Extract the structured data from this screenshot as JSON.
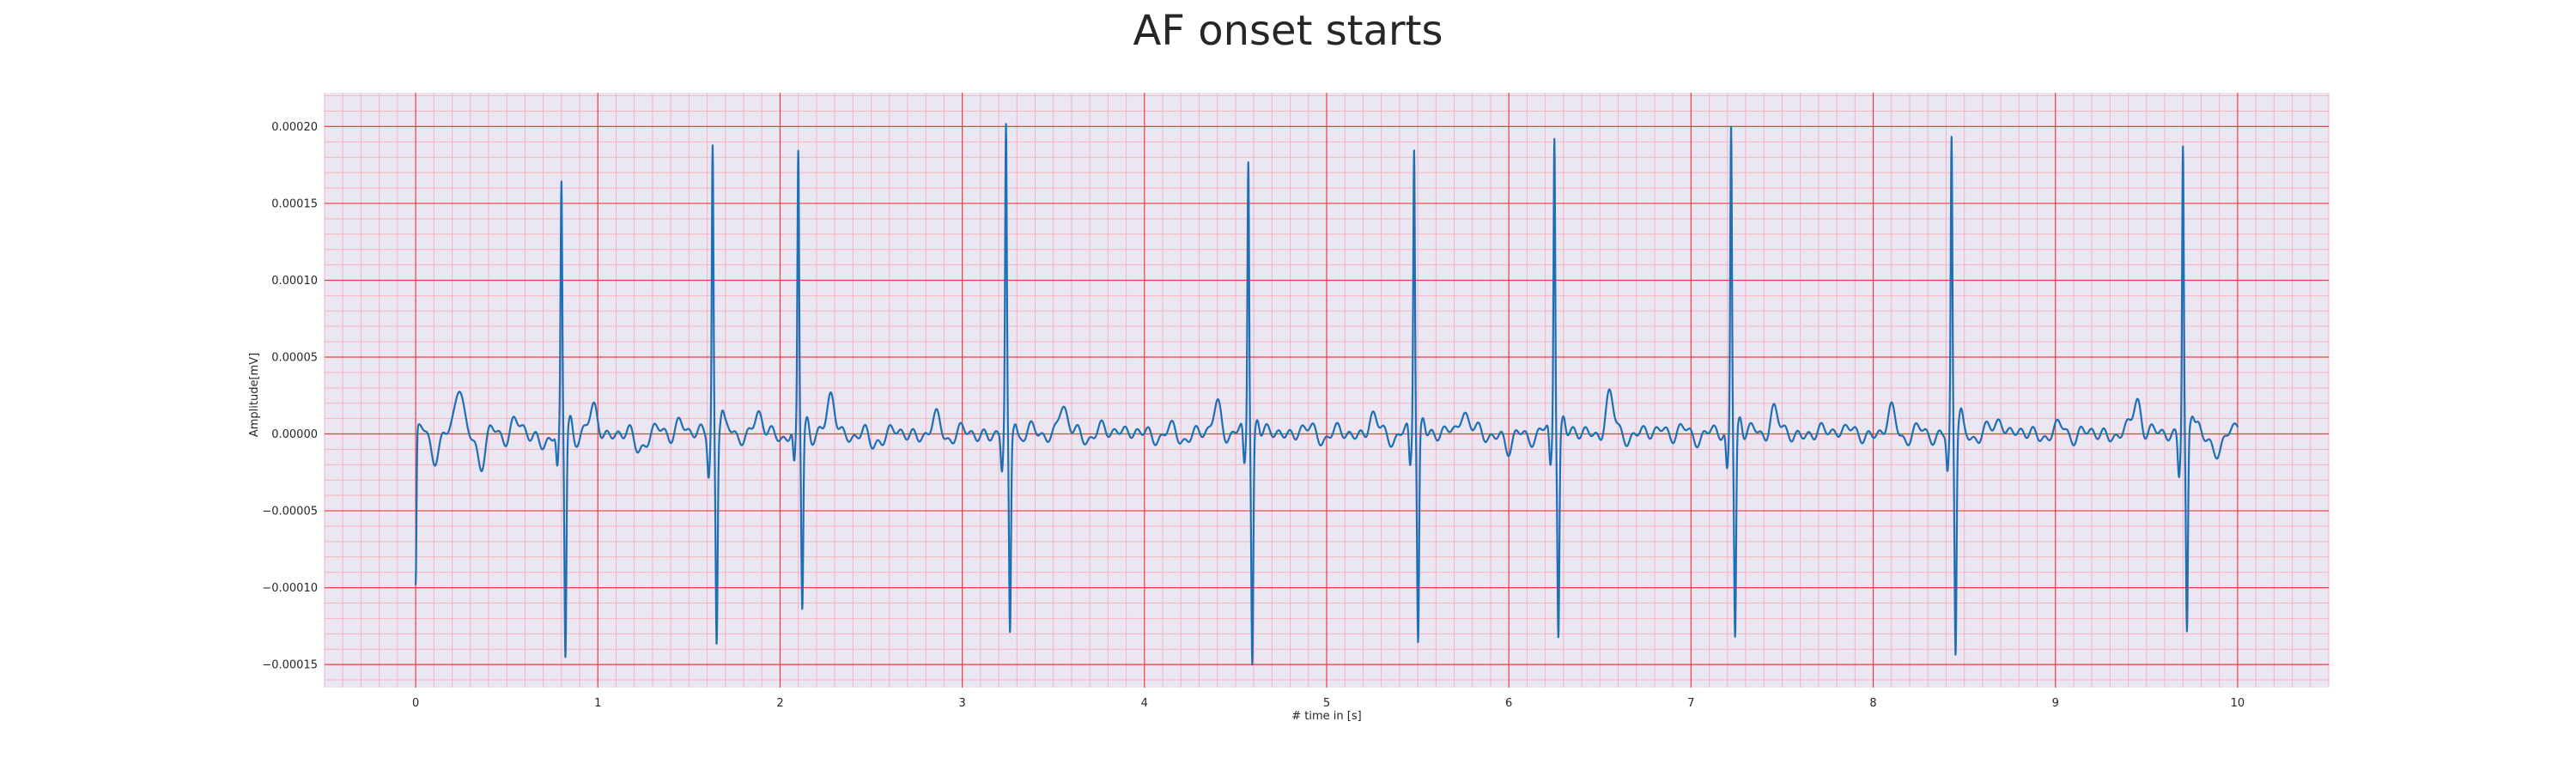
{
  "chart_data": {
    "type": "line",
    "title": "AF onset starts",
    "xlabel": "# time in [s]",
    "ylabel": "Amplitude[mV]",
    "xlim": [
      -0.5,
      10.5
    ],
    "ylim": [
      -0.000165,
      0.000222
    ],
    "x_ticks": [
      0,
      1,
      2,
      3,
      4,
      5,
      6,
      7,
      8,
      9,
      10
    ],
    "x_tick_labels": [
      "0",
      "1",
      "2",
      "3",
      "4",
      "5",
      "6",
      "7",
      "8",
      "9",
      "10"
    ],
    "y_ticks": [
      -0.00015,
      -0.0001,
      -5e-05,
      0.0,
      5e-05,
      0.0001,
      0.00015,
      0.0002
    ],
    "y_tick_labels": [
      "−0.00015",
      "−0.00010",
      "−0.00005",
      "0.00000",
      "0.00005",
      "0.00010",
      "0.00015",
      "0.00020"
    ],
    "grid": {
      "major": true,
      "minor": true,
      "major_color": "#f03c3c",
      "minor_color": "#f7b2c0",
      "background": "#eae6f2"
    },
    "series": [
      {
        "color": "#1f6fb4",
        "beats": [
          {
            "t": 0.8,
            "r": 0.000158,
            "s": -0.000146
          },
          {
            "t": 1.63,
            "r": 0.00019,
            "s": -0.000131
          },
          {
            "t": 2.1,
            "r": 0.000179,
            "s": -0.000114
          },
          {
            "t": 3.24,
            "r": 0.000195,
            "s": -0.000132
          },
          {
            "t": 4.57,
            "r": 0.000181,
            "s": -0.000146
          },
          {
            "t": 5.48,
            "r": 0.000188,
            "s": -0.000135
          },
          {
            "t": 6.25,
            "r": 0.000197,
            "s": -0.000128
          },
          {
            "t": 7.22,
            "r": 0.000202,
            "s": -0.000131
          },
          {
            "t": 8.43,
            "r": 0.000191,
            "s": -0.000142
          },
          {
            "t": 9.7,
            "r": 0.00019,
            "s": -0.00013
          }
        ],
        "baseline": {
          "start": -9.9e-05,
          "end": 9e-06,
          "wander": [
            {
              "t": 0.1,
              "v": -1.3e-05
            },
            {
              "t": 0.24,
              "v": 3.1e-05
            },
            {
              "t": 0.36,
              "v": -1.9e-05
            },
            {
              "t": 0.54,
              "v": 8e-06
            },
            {
              "t": 0.7,
              "v": -7e-06
            },
            {
              "t": 0.98,
              "v": 1.6e-05
            },
            {
              "t": 1.22,
              "v": -1e-05
            },
            {
              "t": 1.45,
              "v": 9e-06
            },
            {
              "t": 1.88,
              "v": 1.2e-05
            },
            {
              "t": 2.28,
              "v": 2.4e-05
            },
            {
              "t": 2.5,
              "v": -8e-06
            },
            {
              "t": 2.86,
              "v": 8e-06
            },
            {
              "t": 3.55,
              "v": 1.9e-05
            },
            {
              "t": 3.85,
              "v": 6e-06
            },
            {
              "t": 4.2,
              "v": -2e-06
            },
            {
              "t": 4.4,
              "v": 2e-05
            },
            {
              "t": 4.85,
              "v": 4e-06
            },
            {
              "t": 5.25,
              "v": 1.1e-05
            },
            {
              "t": 5.75,
              "v": 1.9e-05
            },
            {
              "t": 6.0,
              "v": -1.1e-05
            },
            {
              "t": 6.55,
              "v": 2.4e-05
            },
            {
              "t": 6.85,
              "v": 5e-06
            },
            {
              "t": 7.45,
              "v": 1.7e-05
            },
            {
              "t": 7.8,
              "v": 7e-06
            },
            {
              "t": 8.1,
              "v": 1.4e-05
            },
            {
              "t": 8.7,
              "v": 1.2e-05
            },
            {
              "t": 9.05,
              "v": 4e-06
            },
            {
              "t": 9.45,
              "v": 2.5e-05
            },
            {
              "t": 9.9,
              "v": -1.6e-05
            }
          ]
        }
      }
    ]
  }
}
